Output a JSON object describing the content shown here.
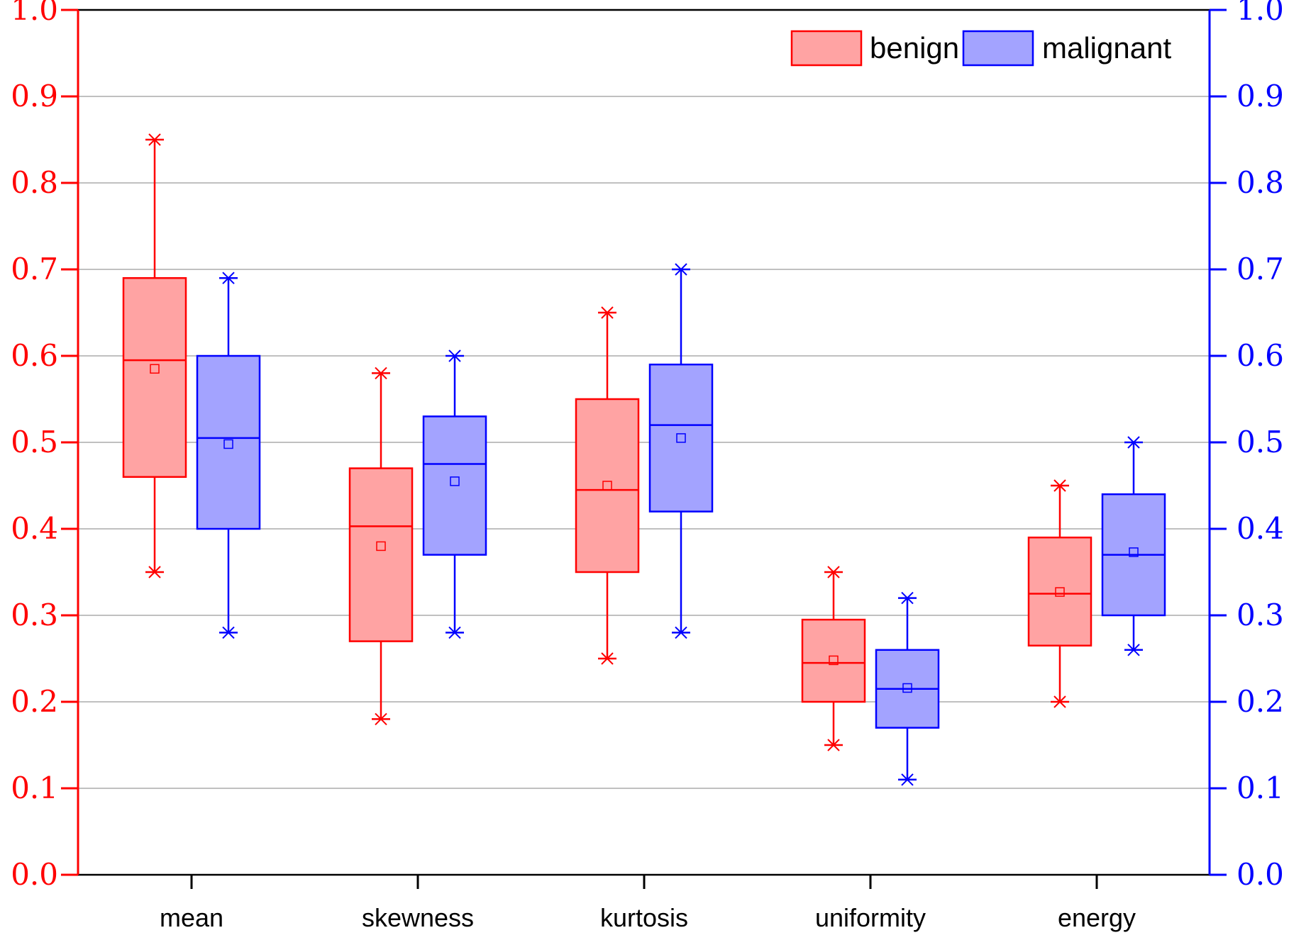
{
  "chart_data": {
    "type": "box",
    "title": "",
    "xlabel": "",
    "ylabel": "",
    "ylim": [
      0,
      1
    ],
    "yticks": [
      "0.0",
      "0.1",
      "0.2",
      "0.3",
      "0.4",
      "0.5",
      "0.6",
      "0.7",
      "0.8",
      "0.9",
      "1.0"
    ],
    "grid": true,
    "legend_position": "top-right",
    "categories": [
      "mean",
      "skewness",
      "kurtosis",
      "uniformity",
      "energy"
    ],
    "series": [
      {
        "name": "benign",
        "fill": "#ffa3a3",
        "stroke": "#ff0000",
        "boxes": [
          {
            "min": 0.35,
            "q1": 0.46,
            "median": 0.595,
            "q3": 0.69,
            "max": 0.85,
            "mean": 0.585
          },
          {
            "min": 0.18,
            "q1": 0.27,
            "median": 0.403,
            "q3": 0.47,
            "max": 0.58,
            "mean": 0.38
          },
          {
            "min": 0.25,
            "q1": 0.35,
            "median": 0.445,
            "q3": 0.55,
            "max": 0.65,
            "mean": 0.45
          },
          {
            "min": 0.15,
            "q1": 0.2,
            "median": 0.245,
            "q3": 0.295,
            "max": 0.35,
            "mean": 0.248
          },
          {
            "min": 0.2,
            "q1": 0.265,
            "median": 0.325,
            "q3": 0.39,
            "max": 0.45,
            "mean": 0.327
          }
        ]
      },
      {
        "name": "malignant",
        "fill": "#a3a3ff",
        "stroke": "#0000ff",
        "boxes": [
          {
            "min": 0.28,
            "q1": 0.4,
            "median": 0.505,
            "q3": 0.6,
            "max": 0.69,
            "mean": 0.498
          },
          {
            "min": 0.28,
            "q1": 0.37,
            "median": 0.475,
            "q3": 0.53,
            "max": 0.6,
            "mean": 0.455
          },
          {
            "min": 0.28,
            "q1": 0.42,
            "median": 0.52,
            "q3": 0.59,
            "max": 0.7,
            "mean": 0.505
          },
          {
            "min": 0.11,
            "q1": 0.17,
            "median": 0.215,
            "q3": 0.26,
            "max": 0.32,
            "mean": 0.216
          },
          {
            "min": 0.26,
            "q1": 0.3,
            "median": 0.37,
            "q3": 0.44,
            "max": 0.5,
            "mean": 0.373
          }
        ]
      }
    ],
    "left_axis_color": "#ff0000",
    "right_axis_color": "#0000ff",
    "grid_color": "#9a9a9a"
  }
}
